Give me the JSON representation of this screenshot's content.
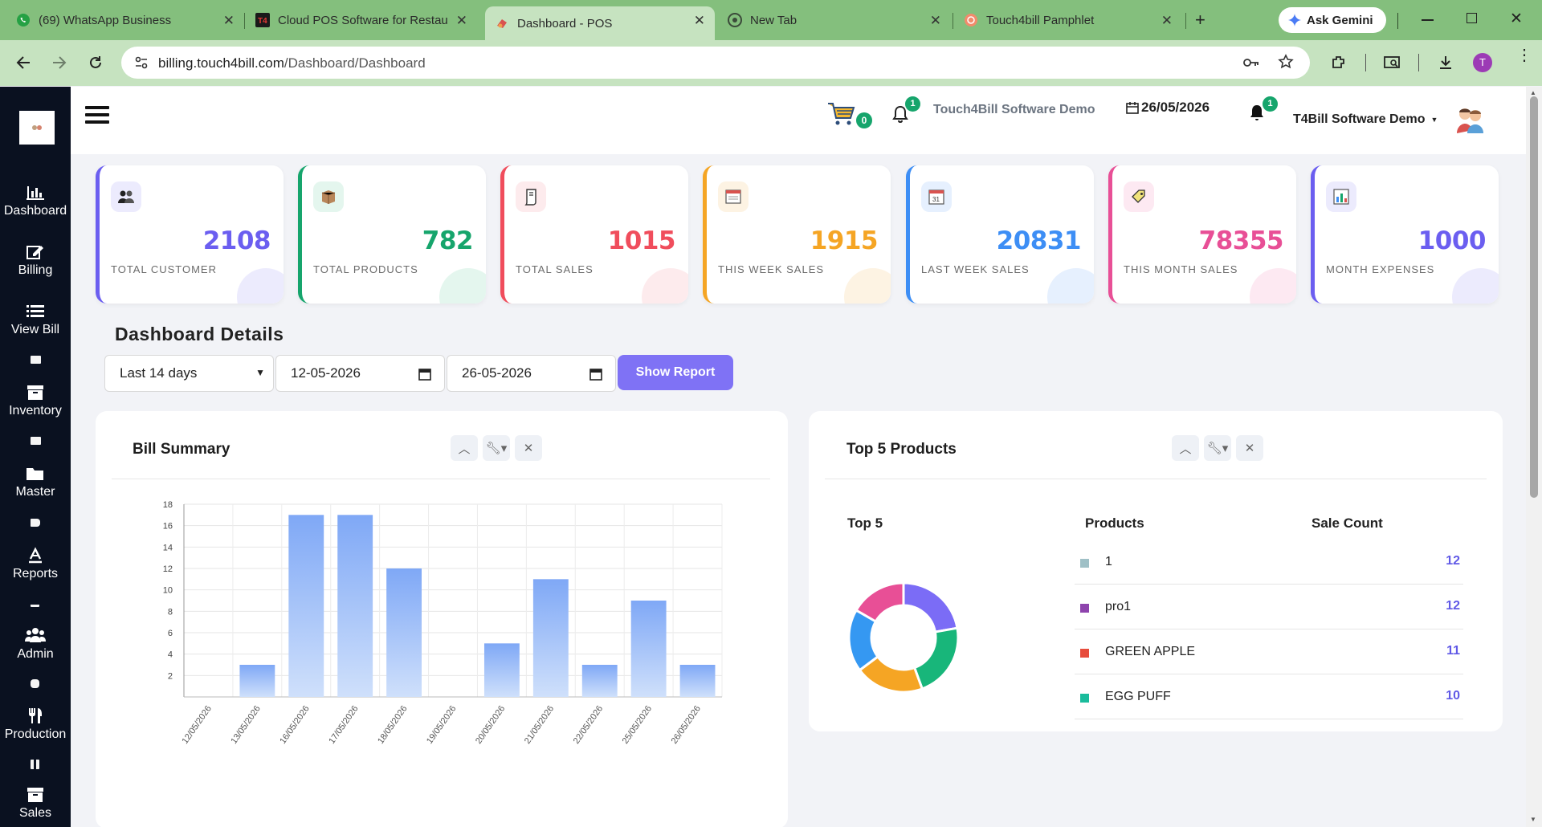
{
  "browser": {
    "tabs": [
      {
        "title": "(69) WhatsApp Business",
        "icon": "whatsapp-icon"
      },
      {
        "title": "Cloud POS Software for Restau",
        "icon": "t4b-icon"
      },
      {
        "title": "Dashboard - POS",
        "icon": "pos-icon",
        "active": true
      },
      {
        "title": "New Tab",
        "icon": "chrome-icon"
      },
      {
        "title": "Touch4bill Pamphlet",
        "icon": "pamphlet-icon"
      }
    ],
    "ask_gemini": "Ask Gemini",
    "url_host": "billing.touch4bill.com",
    "url_path": "/Dashboard/Dashboard",
    "profile_initial": "T"
  },
  "sidebar": {
    "items": [
      {
        "label": "Dashboard",
        "icon": "bar-chart-icon"
      },
      {
        "label": "Billing",
        "icon": "edit-icon"
      },
      {
        "label": "View Bill",
        "icon": "list-icon"
      },
      {
        "label": "Inventory",
        "icon": "archive-icon"
      },
      {
        "label": "Master",
        "icon": "folder-icon"
      },
      {
        "label": "Reports",
        "icon": "reports-icon"
      },
      {
        "label": "Admin",
        "icon": "users-icon"
      },
      {
        "label": "Production",
        "icon": "utensils-icon"
      },
      {
        "label": "Sales",
        "icon": "sales-box-icon"
      }
    ]
  },
  "header": {
    "cart_count": "0",
    "notif_count": "1",
    "company": "Touch4Bill Software Demo",
    "date": "26/05/2026",
    "alert_count": "1",
    "user": "T4Bill Software Demo"
  },
  "stats": [
    {
      "value": "2108",
      "label": "TOTAL CUSTOMER",
      "color": "#6b5ef0",
      "bg": "#ecebfd",
      "icon": "customers-icon"
    },
    {
      "value": "782",
      "label": "TOTAL PRODUCTS",
      "color": "#16a56c",
      "bg": "#e4f6ee",
      "icon": "box-icon"
    },
    {
      "value": "1015",
      "label": "TOTAL SALES",
      "color": "#f04d5c",
      "bg": "#fdebed",
      "icon": "receipt-icon"
    },
    {
      "value": "1915",
      "label": "THIS WEEK SALES",
      "color": "#f5a524",
      "bg": "#fdf3e3",
      "icon": "calendar-week-icon"
    },
    {
      "value": "20831",
      "label": "LAST WEEK SALES",
      "color": "#3d8ef5",
      "bg": "#e6f0fe",
      "icon": "calendar-day-icon"
    },
    {
      "value": "78355",
      "label": "THIS MONTH SALES",
      "color": "#e84f96",
      "bg": "#fde9f2",
      "icon": "tag-icon"
    },
    {
      "value": "1000",
      "label": "MONTH EXPENSES",
      "color": "#6b5ef0",
      "bg": "#ecebfd",
      "icon": "chart-icon"
    }
  ],
  "details": {
    "title": "Dashboard Details",
    "range": "Last 14 days",
    "from_date": "12-05-2026",
    "to_date": "26-05-2026",
    "show_report": "Show Report"
  },
  "bill_summary": {
    "title": "Bill Summary"
  },
  "top_products": {
    "title": "Top 5 Products",
    "chart_label": "Top 5",
    "col_products": "Products",
    "col_count": "Sale Count",
    "rows": [
      {
        "name": "1",
        "count": "12",
        "color": "#9fc0c6"
      },
      {
        "name": "pro1",
        "count": "12",
        "color": "#8e44ad"
      },
      {
        "name": "GREEN APPLE",
        "count": "11",
        "color": "#e74c3c"
      },
      {
        "name": "EGG PUFF",
        "count": "10",
        "color": "#1abc9c"
      }
    ]
  },
  "chart_data": [
    {
      "type": "bar",
      "title": "Bill Summary",
      "categories": [
        "12/05/2026",
        "13/05/2026",
        "16/05/2026",
        "17/05/2026",
        "18/05/2026",
        "19/05/2026",
        "20/05/2026",
        "21/05/2026",
        "22/05/2026",
        "25/05/2026",
        "26/05/2026"
      ],
      "values": [
        0,
        3,
        17,
        17,
        12,
        0,
        5,
        11,
        3,
        9,
        3
      ],
      "ylim": [
        0,
        18
      ],
      "yticks": [
        2,
        4,
        6,
        8,
        10,
        12,
        14,
        16,
        18
      ],
      "grid": true
    },
    {
      "type": "pie",
      "title": "Top 5",
      "donut": true,
      "slices": [
        {
          "value": 12,
          "color": "#7b6cf6"
        },
        {
          "value": 12,
          "color": "#18b67a"
        },
        {
          "value": 11,
          "color": "#f5a524"
        },
        {
          "value": 10,
          "color": "#3598f2"
        },
        {
          "value": 9,
          "color": "#e84f96"
        }
      ]
    }
  ]
}
